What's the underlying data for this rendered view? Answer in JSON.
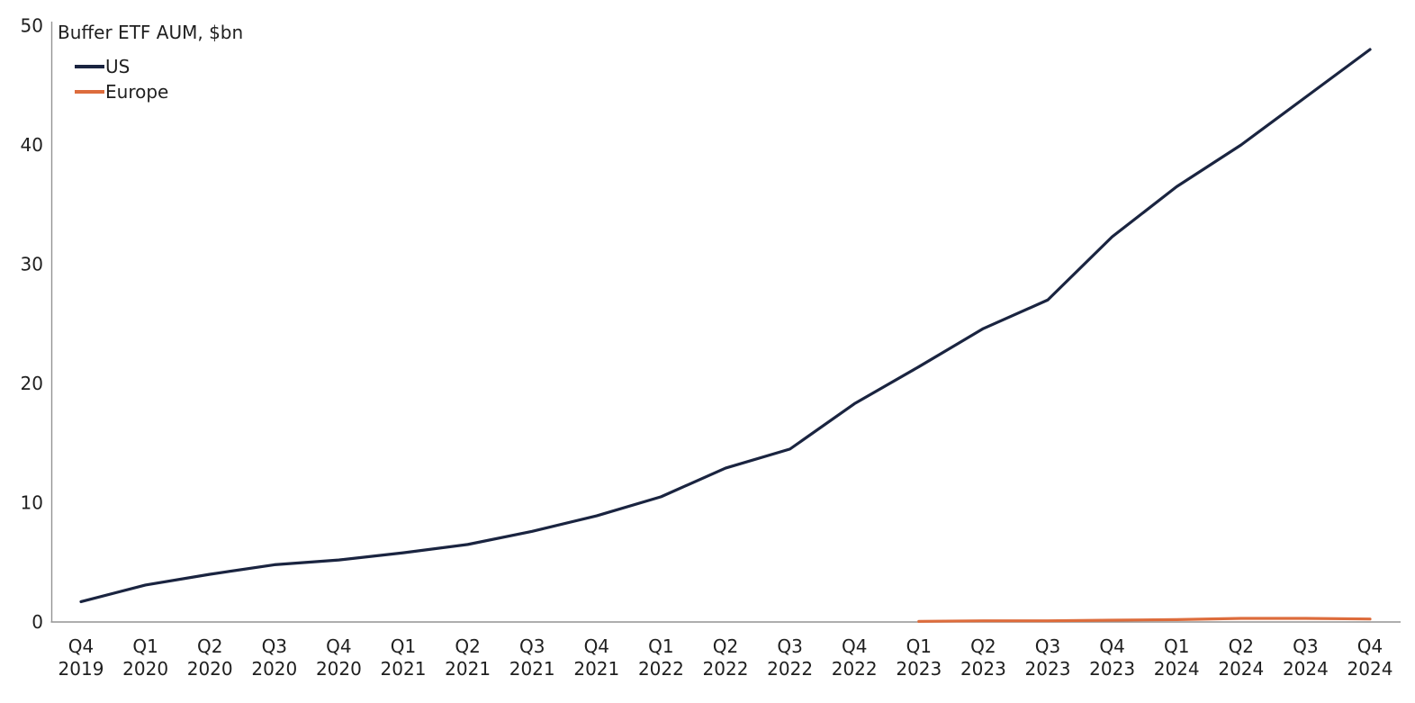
{
  "chart_data": {
    "type": "line",
    "title": "Buffer ETF AUM, $bn",
    "categories": [
      [
        "Q4",
        "2019"
      ],
      [
        "Q1",
        "2020"
      ],
      [
        "Q2",
        "2020"
      ],
      [
        "Q3",
        "2020"
      ],
      [
        "Q4",
        "2020"
      ],
      [
        "Q1",
        "2021"
      ],
      [
        "Q2",
        "2021"
      ],
      [
        "Q3",
        "2021"
      ],
      [
        "Q4",
        "2021"
      ],
      [
        "Q1",
        "2022"
      ],
      [
        "Q2",
        "2022"
      ],
      [
        "Q3",
        "2022"
      ],
      [
        "Q4",
        "2022"
      ],
      [
        "Q1",
        "2023"
      ],
      [
        "Q2",
        "2023"
      ],
      [
        "Q3",
        "2023"
      ],
      [
        "Q4",
        "2023"
      ],
      [
        "Q1",
        "2024"
      ],
      [
        "Q2",
        "2024"
      ],
      [
        "Q3",
        "2024"
      ],
      [
        "Q4",
        "2024"
      ]
    ],
    "series": [
      {
        "name": "US",
        "color": "#1a2440",
        "values": [
          1.7,
          3.1,
          4.0,
          4.8,
          5.2,
          5.8,
          6.5,
          7.6,
          8.9,
          10.5,
          12.9,
          14.5,
          18.3,
          21.4,
          24.6,
          27.0,
          32.3,
          36.5,
          40.0,
          44.0,
          48.0
        ]
      },
      {
        "name": "Europe",
        "color": "#dd6c3c",
        "values": [
          null,
          null,
          null,
          null,
          null,
          null,
          null,
          null,
          null,
          null,
          null,
          null,
          null,
          0.05,
          0.1,
          0.1,
          0.15,
          0.2,
          0.3,
          0.3,
          0.25
        ]
      }
    ],
    "xlabel": "",
    "ylabel": "",
    "ylim": [
      0,
      50
    ],
    "yticks": [
      0,
      10,
      20,
      30,
      40,
      50
    ],
    "grid": false,
    "legend_position": "top-left",
    "axis_color": "#949494",
    "text_color": "#1f1f1f",
    "background": "#ffffff"
  }
}
